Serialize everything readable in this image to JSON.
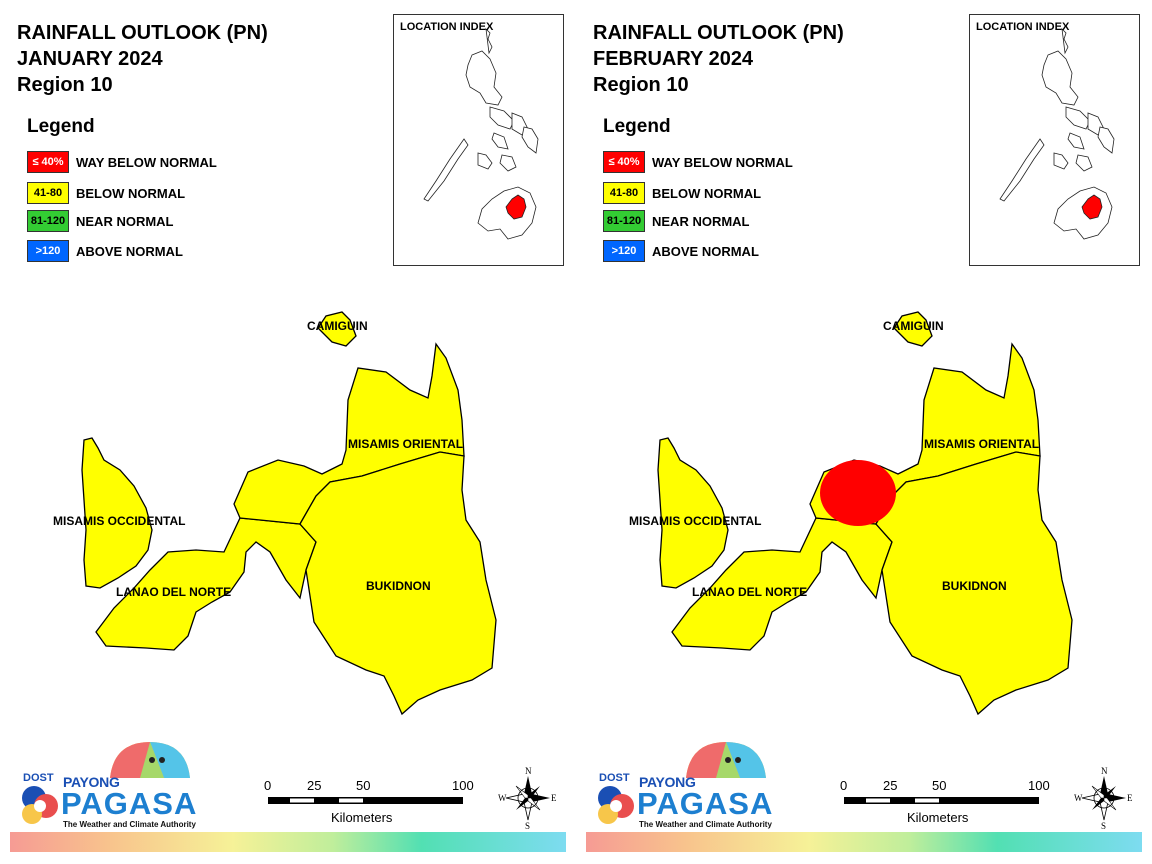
{
  "colors": {
    "way_below_normal": "#ff0000",
    "below_normal": "#ffff00",
    "near_normal": "#33cc33",
    "above_normal": "#0066ff",
    "boundary": "#000000",
    "pagasa_blue": "#1d7fd0"
  },
  "icons": [
    "compass-rose-icon",
    "pagasa-umbrella-logo-icon",
    "dost-seal-icon"
  ],
  "panels": [
    {
      "title_line1": "RAINFALL OUTLOOK (PN)",
      "title_line2": "JANUARY 2024",
      "title_line3": "Region 10",
      "legend_title": "Legend",
      "legend": [
        {
          "range": "≤ 40%",
          "label": "WAY BELOW NORMAL",
          "color": "#ff0000"
        },
        {
          "range": "41-80",
          "label": "BELOW NORMAL",
          "color": "#ffff00"
        },
        {
          "range": "81-120",
          "label": "NEAR NORMAL",
          "color": "#33cc33"
        },
        {
          "range": ">120",
          "label": "ABOVE NORMAL",
          "color": "#0066ff"
        }
      ],
      "location_index_title": "LOCATION INDEX",
      "provinces": {
        "camiguin": "CAMIGUIN",
        "misamis_oriental": "MISAMIS ORIENTAL",
        "misamis_occidental": "MISAMIS OCCIDENTAL",
        "lanao_del_norte": "LANAO DEL NORTE",
        "bukidnon": "BUKIDNON"
      },
      "red_zone_present": false,
      "scale": {
        "ticks": [
          "0",
          "25",
          "50",
          "100"
        ],
        "unit": "Kilometers"
      },
      "compass": {
        "n": "N",
        "s": "S",
        "e": "E",
        "w": "W"
      },
      "logo": {
        "dost": "DOST",
        "payong": "PAYONG",
        "pagasa": "PAGASA",
        "tagline": "The Weather and Climate Authority"
      }
    },
    {
      "title_line1": "RAINFALL OUTLOOK (PN)",
      "title_line2": "FEBRUARY 2024",
      "title_line3": "Region 10",
      "legend_title": "Legend",
      "legend": [
        {
          "range": "≤ 40%",
          "label": "WAY BELOW NORMAL",
          "color": "#ff0000"
        },
        {
          "range": "41-80",
          "label": "BELOW NORMAL",
          "color": "#ffff00"
        },
        {
          "range": "81-120",
          "label": "NEAR NORMAL",
          "color": "#33cc33"
        },
        {
          "range": ">120",
          "label": "ABOVE NORMAL",
          "color": "#0066ff"
        }
      ],
      "location_index_title": "LOCATION INDEX",
      "provinces": {
        "camiguin": "CAMIGUIN",
        "misamis_oriental": "MISAMIS ORIENTAL",
        "misamis_occidental": "MISAMIS OCCIDENTAL",
        "lanao_del_norte": "LANAO DEL NORTE",
        "bukidnon": "BUKIDNON"
      },
      "red_zone_present": true,
      "scale": {
        "ticks": [
          "0",
          "25",
          "50",
          "100"
        ],
        "unit": "Kilometers"
      },
      "compass": {
        "n": "N",
        "s": "S",
        "e": "E",
        "w": "W"
      },
      "logo": {
        "dost": "DOST",
        "payong": "PAYONG",
        "pagasa": "PAGASA",
        "tagline": "The Weather and Climate Authority"
      }
    }
  ]
}
